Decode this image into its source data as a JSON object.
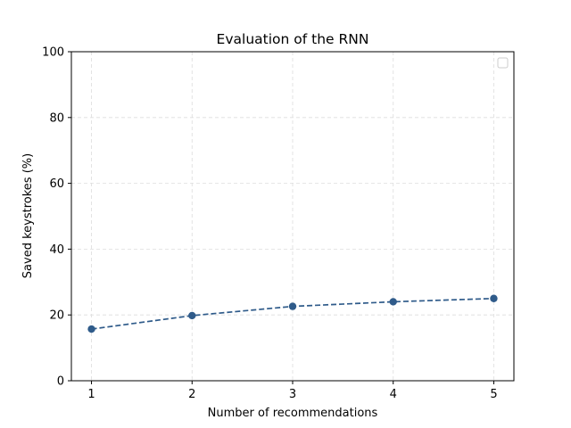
{
  "chart_data": {
    "type": "line",
    "title": "Evaluation of the RNN",
    "xlabel": "Number of recommendations",
    "ylabel": "Saved keystrokes (%)",
    "x": [
      1,
      2,
      3,
      4,
      5
    ],
    "series": [
      {
        "values": [
          15.7,
          19.8,
          22.6,
          24.0,
          25.0
        ],
        "color": "#2f5b8a",
        "line_style": "dashed",
        "marker": "circle"
      }
    ],
    "xticks": [
      "1",
      "2",
      "3",
      "4",
      "5"
    ],
    "yticks": [
      "0",
      "20",
      "40",
      "60",
      "80",
      "100"
    ],
    "xlim": [
      0.8,
      5.2
    ],
    "ylim": [
      0,
      100
    ],
    "grid": true,
    "legend": {
      "placement": "top-right",
      "entries": []
    }
  }
}
